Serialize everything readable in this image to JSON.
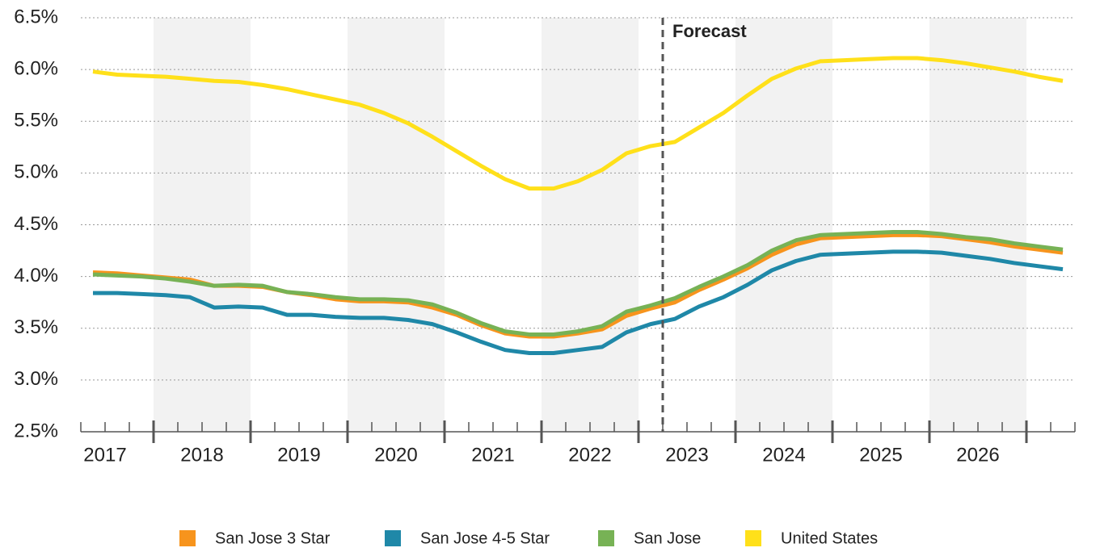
{
  "chart_data": {
    "type": "line",
    "annotation": "Forecast",
    "forecast_x": 2023.25,
    "x": [
      2017.375,
      2017.625,
      2017.875,
      2018.125,
      2018.375,
      2018.625,
      2018.875,
      2019.125,
      2019.375,
      2019.625,
      2019.875,
      2020.125,
      2020.375,
      2020.625,
      2020.875,
      2021.125,
      2021.375,
      2021.625,
      2021.875,
      2022.125,
      2022.375,
      2022.625,
      2022.875,
      2023.125,
      2023.375,
      2023.625,
      2023.875,
      2024.125,
      2024.375,
      2024.625,
      2024.875,
      2025.125,
      2025.375,
      2025.625,
      2025.875,
      2026.125,
      2026.375,
      2026.625,
      2026.875,
      2027.125,
      2027.375
    ],
    "series": [
      {
        "name": "San Jose 3 Star",
        "color": "#f7941d",
        "values": [
          4.04,
          4.03,
          4.01,
          3.99,
          3.97,
          3.91,
          3.91,
          3.9,
          3.85,
          3.82,
          3.78,
          3.76,
          3.76,
          3.75,
          3.7,
          3.63,
          3.53,
          3.45,
          3.42,
          3.42,
          3.45,
          3.49,
          3.62,
          3.69,
          3.75,
          3.87,
          3.97,
          4.08,
          4.21,
          4.31,
          4.37,
          4.38,
          4.39,
          4.4,
          4.4,
          4.39,
          4.36,
          4.33,
          4.29,
          4.26,
          4.23
        ]
      },
      {
        "name": "San Jose 4-5 Star",
        "color": "#1f88a8",
        "values": [
          3.84,
          3.84,
          3.83,
          3.82,
          3.8,
          3.7,
          3.71,
          3.7,
          3.63,
          3.63,
          3.61,
          3.6,
          3.6,
          3.58,
          3.54,
          3.46,
          3.37,
          3.29,
          3.26,
          3.26,
          3.29,
          3.32,
          3.46,
          3.54,
          3.59,
          3.71,
          3.8,
          3.92,
          4.06,
          4.15,
          4.21,
          4.22,
          4.23,
          4.24,
          4.24,
          4.23,
          4.2,
          4.17,
          4.13,
          4.1,
          4.07
        ]
      },
      {
        "name": "San Jose",
        "color": "#77b255",
        "values": [
          4.02,
          4.01,
          4.0,
          3.98,
          3.95,
          3.91,
          3.92,
          3.91,
          3.85,
          3.83,
          3.8,
          3.78,
          3.78,
          3.77,
          3.73,
          3.65,
          3.55,
          3.47,
          3.44,
          3.44,
          3.47,
          3.52,
          3.66,
          3.72,
          3.79,
          3.9,
          4.0,
          4.11,
          4.25,
          4.35,
          4.4,
          4.41,
          4.42,
          4.43,
          4.43,
          4.41,
          4.38,
          4.36,
          4.32,
          4.29,
          4.26
        ]
      },
      {
        "name": "United States",
        "color": "#ffe01a",
        "values": [
          5.98,
          5.95,
          5.94,
          5.93,
          5.91,
          5.89,
          5.88,
          5.85,
          5.81,
          5.76,
          5.71,
          5.66,
          5.58,
          5.48,
          5.35,
          5.21,
          5.07,
          4.94,
          4.85,
          4.85,
          4.92,
          5.03,
          5.19,
          5.26,
          5.3,
          5.44,
          5.58,
          5.75,
          5.91,
          6.01,
          6.08,
          6.09,
          6.1,
          6.11,
          6.11,
          6.09,
          6.06,
          6.02,
          5.98,
          5.93,
          5.89
        ]
      }
    ],
    "xlim": [
      2017.25,
      2027.5
    ],
    "xticks": [
      {
        "value": 2017.5,
        "label": "2017"
      },
      {
        "value": 2018.5,
        "label": "2018"
      },
      {
        "value": 2019.5,
        "label": "2019"
      },
      {
        "value": 2020.5,
        "label": "2020"
      },
      {
        "value": 2021.5,
        "label": "2021"
      },
      {
        "value": 2022.5,
        "label": "2022"
      },
      {
        "value": 2023.5,
        "label": "2023"
      },
      {
        "value": 2024.5,
        "label": "2024"
      },
      {
        "value": 2025.5,
        "label": "2025"
      },
      {
        "value": 2026.5,
        "label": "2026"
      }
    ],
    "ylim": [
      2.5,
      6.5
    ],
    "yticks": [
      {
        "value": 2.5,
        "label": "2.5%"
      },
      {
        "value": 3,
        "label": "3.0%"
      },
      {
        "value": 3.5,
        "label": "3.5%"
      },
      {
        "value": 4,
        "label": "4.0%"
      },
      {
        "value": 4.5,
        "label": "4.5%"
      },
      {
        "value": 5,
        "label": "5.0%"
      },
      {
        "value": 5.5,
        "label": "5.5%"
      },
      {
        "value": 6,
        "label": "6.0%"
      },
      {
        "value": 6.5,
        "label": "6.5%"
      }
    ],
    "grid": true,
    "legend": "bottom"
  }
}
